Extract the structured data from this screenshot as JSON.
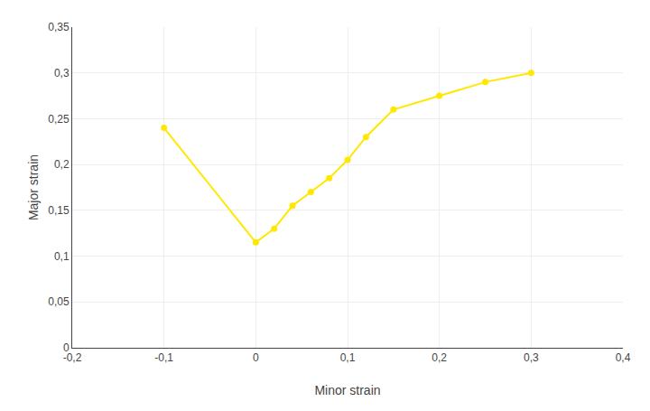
{
  "chart_data": {
    "type": "line",
    "x": [
      -0.1,
      0.0,
      0.02,
      0.04,
      0.06,
      0.08,
      0.1,
      0.12,
      0.15,
      0.2,
      0.25,
      0.3
    ],
    "values": [
      0.24,
      0.115,
      0.13,
      0.155,
      0.17,
      0.185,
      0.205,
      0.23,
      0.26,
      0.275,
      0.29,
      0.3
    ],
    "color": "#FFE800",
    "marker": "circle",
    "line_style": "solid",
    "xlabel": "Minor strain",
    "ylabel": "Major strain",
    "xlim": [
      -0.2,
      0.4
    ],
    "ylim": [
      0,
      0.35
    ],
    "xticks": [
      {
        "value": -0.2,
        "label": "-0,2"
      },
      {
        "value": -0.1,
        "label": "-0,1"
      },
      0,
      {
        "value": 0.1,
        "label": "0,1"
      },
      {
        "value": 0.2,
        "label": "0,2"
      },
      {
        "value": 0.3,
        "label": "0,3"
      },
      {
        "value": 0.4,
        "label": "0,4"
      }
    ],
    "yticks": [
      0,
      {
        "value": 0.05,
        "label": "0,05"
      },
      {
        "value": 0.1,
        "label": "0,1"
      },
      {
        "value": 0.15,
        "label": "0,15"
      },
      {
        "value": 0.2,
        "label": "0,2"
      },
      {
        "value": 0.25,
        "label": "0,25"
      },
      {
        "value": 0.3,
        "label": "0,3"
      },
      {
        "value": 0.35,
        "label": "0,35"
      }
    ],
    "grid": true
  }
}
